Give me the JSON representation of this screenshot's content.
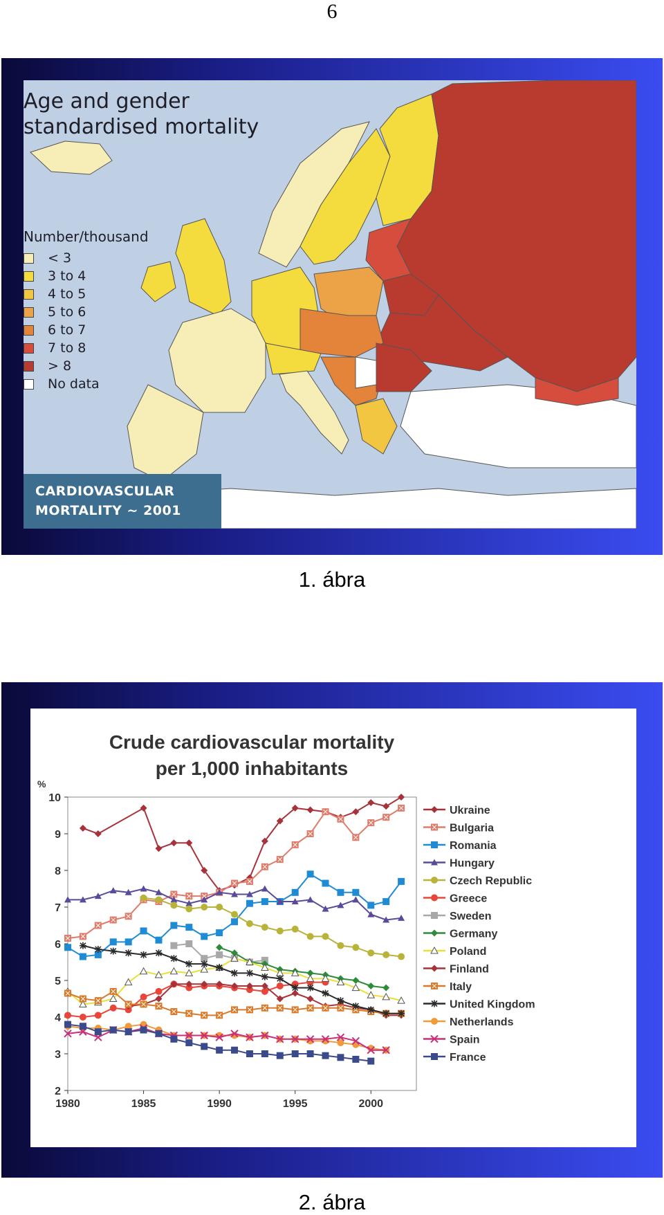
{
  "page_number": "6",
  "figure1": {
    "caption": "1. ábra",
    "title": "Age and gender\nstandardised mortality",
    "legend_title": "Number/thousand",
    "legend": [
      {
        "label": "< 3",
        "color": "#f7edb7"
      },
      {
        "label": "3 to 4",
        "color": "#f5dc3e"
      },
      {
        "label": "4 to 5",
        "color": "#f2c641"
      },
      {
        "label": "5 to 6",
        "color": "#eca347"
      },
      {
        "label": "6 to 7",
        "color": "#e4843a"
      },
      {
        "label": "7 to 8",
        "color": "#d64c3d"
      },
      {
        "label": "> 8",
        "color": "#b93a2e"
      },
      {
        "label": "No data",
        "color": "#ffffff"
      }
    ],
    "banner_line1": "CARDIOVASCULAR",
    "banner_line2": "MORTALITY ~ 2001",
    "colors": {
      "sea": "#bfcfe4",
      "land_other": "#ffffff"
    }
  },
  "figure2": {
    "caption": "2. ábra",
    "chart_data": {
      "type": "line",
      "title": "Crude cardiovascular mortality per 1,000 inhabitants",
      "ylabel": "%",
      "ylim": [
        2,
        10
      ],
      "xlim": [
        1980,
        2003
      ],
      "yticks": [
        2,
        3,
        4,
        5,
        6,
        7,
        8,
        9,
        10
      ],
      "xticks": [
        1980,
        1985,
        1990,
        1995,
        2000
      ],
      "legend_position": "right",
      "series": [
        {
          "name": "Ukraine",
          "color": "#a8323a",
          "marker": "diamond",
          "x": [
            1981,
            1982,
            1985,
            1986,
            1987,
            1988,
            1989,
            1990,
            1991,
            1992,
            1993,
            1994,
            1995,
            1996,
            1997,
            1998,
            1999,
            2000,
            2001,
            2002
          ],
          "values": [
            9.15,
            9.0,
            9.7,
            8.6,
            8.75,
            8.75,
            8.0,
            7.45,
            7.6,
            7.8,
            8.8,
            9.35,
            9.7,
            9.65,
            9.6,
            9.45,
            9.6,
            9.85,
            9.75,
            10.0
          ]
        },
        {
          "name": "Bulgaria",
          "color": "#e07b6a",
          "marker": "square-x",
          "x": [
            1980,
            1981,
            1982,
            1983,
            1984,
            1985,
            1986,
            1987,
            1988,
            1989,
            1990,
            1991,
            1992,
            1993,
            1994,
            1995,
            1996,
            1997,
            1998,
            1999,
            2000,
            2001,
            2002
          ],
          "values": [
            6.15,
            6.2,
            6.5,
            6.65,
            6.75,
            7.2,
            7.15,
            7.35,
            7.3,
            7.3,
            7.4,
            7.65,
            7.7,
            8.1,
            8.3,
            8.7,
            9.0,
            9.6,
            9.4,
            8.9,
            9.3,
            9.45,
            9.7
          ]
        },
        {
          "name": "Romania",
          "color": "#1e8bd4",
          "marker": "square",
          "x": [
            1980,
            1981,
            1982,
            1983,
            1984,
            1985,
            1986,
            1987,
            1988,
            1989,
            1990,
            1991,
            1992,
            1993,
            1994,
            1995,
            1996,
            1997,
            1998,
            1999,
            2000,
            2001,
            2002
          ],
          "values": [
            5.9,
            5.65,
            5.7,
            6.05,
            6.05,
            6.35,
            6.1,
            6.5,
            6.45,
            6.2,
            6.3,
            6.6,
            7.1,
            7.15,
            7.15,
            7.4,
            7.9,
            7.65,
            7.4,
            7.4,
            7.05,
            7.15,
            7.7
          ]
        },
        {
          "name": "Hungary",
          "color": "#5a4a9a",
          "marker": "triangle",
          "x": [
            1980,
            1981,
            1982,
            1983,
            1984,
            1985,
            1986,
            1987,
            1988,
            1989,
            1990,
            1991,
            1992,
            1993,
            1994,
            1995,
            1996,
            1997,
            1998,
            1999,
            2000,
            2001,
            2002
          ],
          "values": [
            7.2,
            7.2,
            7.3,
            7.45,
            7.4,
            7.5,
            7.4,
            7.2,
            7.1,
            7.2,
            7.4,
            7.35,
            7.35,
            7.5,
            7.15,
            7.15,
            7.2,
            6.95,
            7.05,
            7.2,
            6.8,
            6.65,
            6.7
          ]
        },
        {
          "name": "Czech Republic",
          "color": "#b8b43a",
          "marker": "circle",
          "x": [
            1985,
            1986,
            1987,
            1988,
            1989,
            1990,
            1991,
            1992,
            1993,
            1994,
            1995,
            1996,
            1997,
            1998,
            1999,
            2000,
            2001,
            2002
          ],
          "values": [
            7.25,
            7.2,
            7.05,
            6.95,
            7.0,
            7.0,
            6.8,
            6.55,
            6.45,
            6.35,
            6.4,
            6.2,
            6.2,
            5.95,
            5.9,
            5.75,
            5.7,
            5.65
          ]
        },
        {
          "name": "Greece",
          "color": "#e8463a",
          "marker": "circle",
          "x": [
            1980,
            1981,
            1982,
            1983,
            1984,
            1985,
            1986,
            1987,
            1988,
            1989,
            1990,
            1991,
            1992,
            1993,
            1994,
            1995,
            1996,
            1997
          ],
          "values": [
            4.05,
            4.0,
            4.05,
            4.25,
            4.2,
            4.55,
            4.7,
            4.9,
            4.8,
            4.85,
            4.85,
            4.8,
            4.75,
            4.7,
            4.85,
            4.9,
            4.95,
            4.95
          ]
        },
        {
          "name": "Sweden",
          "color": "#a8a8a8",
          "marker": "square",
          "x": [
            1987,
            1988,
            1989,
            1990,
            1991,
            1992,
            1993
          ],
          "values": [
            5.95,
            6.0,
            5.6,
            5.7,
            5.6,
            5.5,
            5.55
          ]
        },
        {
          "name": "Germany",
          "color": "#2e8b3a",
          "marker": "diamond",
          "x": [
            1990,
            1991,
            1992,
            1993,
            1994,
            1995,
            1996,
            1997,
            1998,
            1999,
            2000,
            2001
          ],
          "values": [
            5.9,
            5.75,
            5.5,
            5.45,
            5.3,
            5.25,
            5.2,
            5.15,
            5.05,
            5.0,
            4.85,
            4.8
          ]
        },
        {
          "name": "Poland",
          "color": "#e8e03a",
          "marker": "triangle-open",
          "x": [
            1980,
            1981,
            1982,
            1983,
            1984,
            1985,
            1986,
            1987,
            1988,
            1989,
            1990,
            1991,
            1992,
            1993,
            1994,
            1995,
            1996,
            1997,
            1998,
            1999,
            2000,
            2001,
            2002
          ],
          "values": [
            4.7,
            4.35,
            4.4,
            4.5,
            4.95,
            5.25,
            5.15,
            5.25,
            5.2,
            5.3,
            5.35,
            5.6,
            5.5,
            5.35,
            5.2,
            5.2,
            5.05,
            5.05,
            4.95,
            4.8,
            4.6,
            4.55,
            4.45
          ]
        },
        {
          "name": "Finland",
          "color": "#a8323a",
          "marker": "diamond",
          "x": [
            1984,
            1985,
            1986,
            1987,
            1988,
            1989,
            1990,
            1991,
            1992,
            1993,
            1994,
            1995,
            1996,
            1997,
            1998,
            1999,
            2000,
            2001,
            2002
          ],
          "values": [
            4.3,
            4.35,
            4.5,
            4.9,
            4.9,
            4.9,
            4.9,
            4.85,
            4.85,
            4.85,
            4.5,
            4.65,
            4.5,
            4.3,
            4.35,
            4.25,
            4.2,
            4.05,
            4.05
          ]
        },
        {
          "name": "Italy",
          "color": "#d87a2a",
          "marker": "square-x",
          "x": [
            1980,
            1981,
            1982,
            1983,
            1984,
            1985,
            1986,
            1987,
            1988,
            1989,
            1990,
            1991,
            1992,
            1993,
            1994,
            1995,
            1996,
            1997,
            1998,
            1999,
            2000,
            2001,
            2002
          ],
          "values": [
            4.65,
            4.5,
            4.45,
            4.7,
            4.35,
            4.35,
            4.3,
            4.15,
            4.1,
            4.05,
            4.05,
            4.2,
            4.2,
            4.25,
            4.25,
            4.2,
            4.25,
            4.25,
            4.25,
            4.2,
            4.15,
            4.1,
            4.1
          ]
        },
        {
          "name": "United Kingdom",
          "color": "#2a2a2a",
          "marker": "star",
          "x": [
            1981,
            1982,
            1983,
            1984,
            1985,
            1986,
            1987,
            1988,
            1989,
            1990,
            1991,
            1992,
            1993,
            1994,
            1995,
            1996,
            1997,
            1998,
            1999,
            2000,
            2001,
            2002
          ],
          "values": [
            5.95,
            5.85,
            5.8,
            5.75,
            5.7,
            5.75,
            5.6,
            5.45,
            5.45,
            5.35,
            5.2,
            5.2,
            5.1,
            5.05,
            4.8,
            4.8,
            4.65,
            4.45,
            4.3,
            4.2,
            4.1,
            4.1
          ]
        },
        {
          "name": "Netherlands",
          "color": "#f09a3a",
          "marker": "circle",
          "x": [
            1980,
            1981,
            1982,
            1983,
            1984,
            1985,
            1986,
            1987,
            1988,
            1989,
            1990,
            1991,
            1992,
            1993,
            1994,
            1995,
            1996,
            1997,
            1998,
            1999,
            2000,
            2001
          ],
          "values": [
            3.75,
            3.7,
            3.7,
            3.65,
            3.75,
            3.8,
            3.65,
            3.5,
            3.5,
            3.5,
            3.5,
            3.5,
            3.45,
            3.5,
            3.4,
            3.4,
            3.35,
            3.35,
            3.3,
            3.25,
            3.15,
            3.1
          ]
        },
        {
          "name": "Spain",
          "color": "#c8307a",
          "marker": "x",
          "x": [
            1980,
            1981,
            1982,
            1983,
            1984,
            1985,
            1986,
            1987,
            1988,
            1989,
            1990,
            1991,
            1992,
            1993,
            1994,
            1995,
            1996,
            1997,
            1998,
            1999,
            2000,
            2001
          ],
          "values": [
            3.55,
            3.6,
            3.45,
            3.65,
            3.6,
            3.7,
            3.55,
            3.5,
            3.5,
            3.5,
            3.45,
            3.55,
            3.45,
            3.5,
            3.4,
            3.4,
            3.4,
            3.4,
            3.45,
            3.35,
            3.1,
            3.1
          ]
        },
        {
          "name": "France",
          "color": "#3a4a8a",
          "marker": "square",
          "x": [
            1980,
            1981,
            1982,
            1983,
            1984,
            1985,
            1986,
            1987,
            1988,
            1989,
            1990,
            1991,
            1992,
            1993,
            1994,
            1995,
            1996,
            1997,
            1998,
            1999,
            2000
          ],
          "values": [
            3.8,
            3.75,
            3.6,
            3.65,
            3.6,
            3.65,
            3.55,
            3.4,
            3.3,
            3.2,
            3.1,
            3.1,
            3.0,
            3.0,
            2.95,
            3.0,
            3.0,
            2.95,
            2.9,
            2.85,
            2.8
          ]
        }
      ]
    }
  }
}
